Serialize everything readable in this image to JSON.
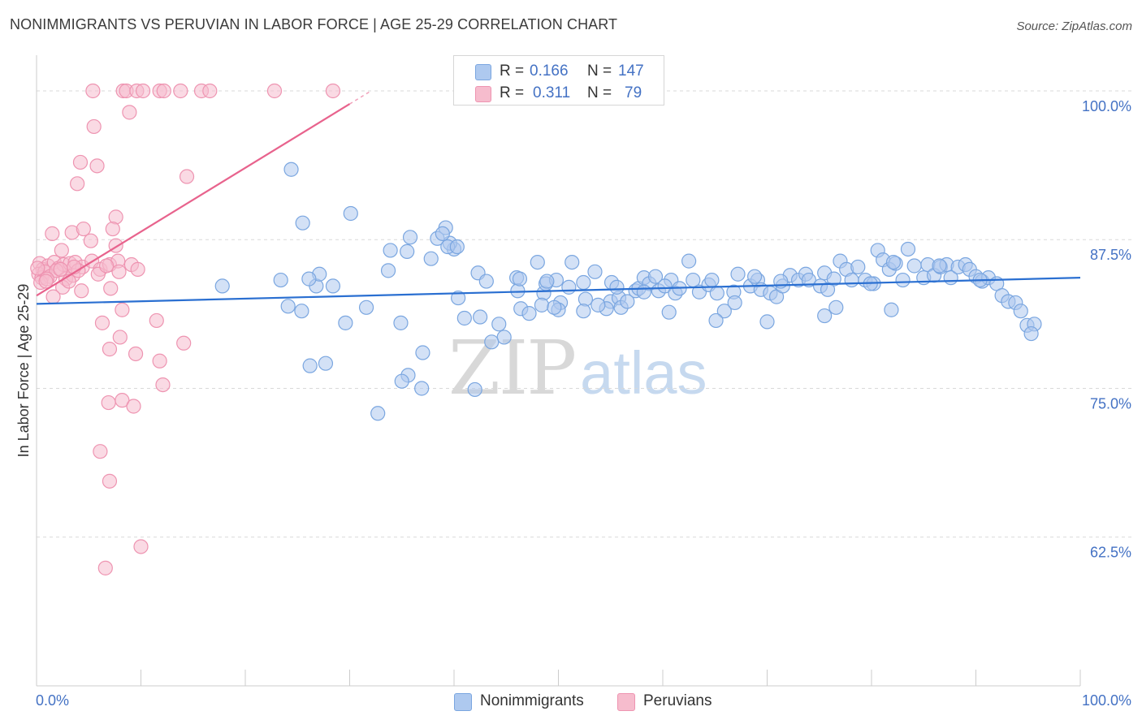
{
  "title": "NONIMMIGRANTS VS PERUVIAN IN LABOR FORCE | AGE 25-29 CORRELATION CHART",
  "source": "Source: ZipAtlas.com",
  "watermark": {
    "zip": "ZIP",
    "atlas": "atlas"
  },
  "colors": {
    "blue_fill": "#aec9ef",
    "blue_stroke": "#7aa6e0",
    "blue_line": "#2a6fd1",
    "pink_fill": "#f6bccd",
    "pink_stroke": "#ee94b1",
    "pink_line": "#e8638d",
    "tick_text": "#4472c4",
    "grid": "#d9d9d9"
  },
  "legend": {
    "rows": [
      {
        "series": "Nonimmigrants",
        "r_label": "R =",
        "r_value": "0.166",
        "n_label": "N =",
        "n_value": "147"
      },
      {
        "series": "Peruvians",
        "r_label": "R =",
        "r_value": "0.311",
        "n_label": "N =",
        "n_value": "79"
      }
    ]
  },
  "bottom_legend": [
    "Nonimmigrants",
    "Peruvians"
  ],
  "chart_data": {
    "type": "scatter",
    "title": "NONIMMIGRANTS VS PERUVIAN IN LABOR FORCE | AGE 25-29 CORRELATION CHART",
    "xlabel": "",
    "ylabel": "In Labor Force | Age 25-29",
    "xlim": [
      0,
      100
    ],
    "ylim": [
      50,
      103
    ],
    "x_tick_labels": [
      "0.0%",
      "100.0%"
    ],
    "y_ticks": [
      62.5,
      75.0,
      87.5,
      100.0
    ],
    "y_tick_labels": [
      "62.5%",
      "75.0%",
      "87.5%",
      "100.0%"
    ],
    "grid": true,
    "series": [
      {
        "name": "Nonimmigrants",
        "r": 0.166,
        "n": 147,
        "trend": {
          "x": [
            0,
            100
          ],
          "y": [
            82.1,
            84.3
          ]
        },
        "points": [
          [
            24.4,
            93.4
          ],
          [
            25.5,
            88.9
          ],
          [
            26.8,
            83.6
          ],
          [
            27.1,
            84.6
          ],
          [
            28.4,
            83.6
          ],
          [
            30.1,
            89.7
          ],
          [
            33.7,
            84.9
          ],
          [
            33.9,
            86.6
          ],
          [
            35.5,
            86.5
          ],
          [
            35.8,
            87.7
          ],
          [
            38.4,
            87.6
          ],
          [
            37.8,
            85.9
          ],
          [
            40.0,
            86.7
          ],
          [
            39.6,
            87.2
          ],
          [
            39.2,
            88.5
          ],
          [
            38.9,
            88.0
          ],
          [
            39.4,
            86.9
          ],
          [
            40.3,
            86.9
          ],
          [
            42.3,
            84.7
          ],
          [
            43.1,
            84.0
          ],
          [
            46.0,
            84.3
          ],
          [
            48.0,
            85.6
          ],
          [
            46.1,
            83.2
          ],
          [
            48.6,
            83.0
          ],
          [
            48.8,
            83.8
          ],
          [
            46.4,
            81.7
          ],
          [
            48.4,
            82.0
          ],
          [
            49.8,
            84.1
          ],
          [
            50.2,
            82.2
          ],
          [
            50.0,
            81.6
          ],
          [
            51.0,
            83.5
          ],
          [
            51.3,
            85.6
          ],
          [
            52.6,
            82.5
          ],
          [
            52.4,
            81.5
          ],
          [
            53.5,
            84.8
          ],
          [
            55.0,
            82.3
          ],
          [
            54.6,
            81.7
          ],
          [
            55.1,
            83.9
          ],
          [
            55.8,
            82.6
          ],
          [
            56.0,
            81.8
          ],
          [
            57.4,
            83.2
          ],
          [
            56.6,
            82.3
          ],
          [
            57.7,
            83.4
          ],
          [
            58.2,
            84.3
          ],
          [
            58.7,
            83.8
          ],
          [
            59.3,
            84.4
          ],
          [
            59.6,
            83.2
          ],
          [
            60.8,
            84.1
          ],
          [
            60.2,
            83.6
          ],
          [
            61.2,
            83.0
          ],
          [
            62.5,
            85.7
          ],
          [
            62.9,
            84.1
          ],
          [
            63.5,
            83.1
          ],
          [
            64.4,
            83.7
          ],
          [
            65.2,
            83.0
          ],
          [
            65.9,
            81.5
          ],
          [
            66.8,
            83.1
          ],
          [
            66.9,
            82.2
          ],
          [
            67.2,
            84.6
          ],
          [
            68.4,
            83.6
          ],
          [
            69.1,
            84.1
          ],
          [
            69.4,
            83.3
          ],
          [
            70.3,
            83.0
          ],
          [
            70.9,
            82.7
          ],
          [
            71.5,
            83.6
          ],
          [
            72.2,
            84.5
          ],
          [
            73.0,
            84.1
          ],
          [
            73.7,
            84.6
          ],
          [
            74.0,
            84.1
          ],
          [
            75.1,
            83.6
          ],
          [
            75.5,
            84.7
          ],
          [
            76.4,
            84.2
          ],
          [
            77.0,
            85.7
          ],
          [
            77.6,
            85.0
          ],
          [
            78.1,
            84.1
          ],
          [
            78.7,
            85.2
          ],
          [
            79.4,
            84.1
          ],
          [
            80.2,
            83.8
          ],
          [
            80.6,
            86.6
          ],
          [
            81.1,
            85.8
          ],
          [
            81.7,
            85.0
          ],
          [
            82.3,
            85.5
          ],
          [
            83.5,
            86.7
          ],
          [
            83.0,
            84.1
          ],
          [
            84.1,
            85.3
          ],
          [
            85.0,
            84.3
          ],
          [
            85.4,
            85.4
          ],
          [
            86.0,
            84.5
          ],
          [
            86.6,
            85.2
          ],
          [
            87.2,
            85.4
          ],
          [
            87.6,
            84.3
          ],
          [
            88.3,
            85.2
          ],
          [
            89.0,
            85.4
          ],
          [
            89.4,
            85.0
          ],
          [
            90.0,
            84.4
          ],
          [
            90.6,
            84.0
          ],
          [
            91.2,
            84.3
          ],
          [
            92.0,
            83.8
          ],
          [
            92.5,
            82.8
          ],
          [
            93.1,
            82.3
          ],
          [
            93.8,
            82.2
          ],
          [
            94.3,
            81.5
          ],
          [
            94.9,
            80.3
          ],
          [
            95.6,
            80.4
          ],
          [
            95.3,
            79.6
          ],
          [
            90.4,
            84.1
          ],
          [
            86.5,
            85.3
          ],
          [
            82.1,
            85.6
          ],
          [
            79.9,
            83.8
          ],
          [
            75.8,
            83.3
          ],
          [
            71.3,
            84.0
          ],
          [
            68.8,
            84.4
          ],
          [
            64.7,
            84.1
          ],
          [
            61.6,
            83.4
          ],
          [
            58.2,
            83.1
          ],
          [
            55.6,
            83.5
          ],
          [
            52.4,
            83.9
          ],
          [
            48.9,
            84.0
          ],
          [
            46.3,
            84.2
          ],
          [
            17.8,
            83.6
          ],
          [
            26.1,
            84.2
          ],
          [
            23.4,
            84.1
          ],
          [
            24.1,
            81.9
          ],
          [
            25.4,
            81.5
          ],
          [
            29.6,
            80.5
          ],
          [
            31.6,
            81.8
          ],
          [
            34.9,
            80.5
          ],
          [
            37.0,
            78.0
          ],
          [
            35.6,
            76.1
          ],
          [
            41.0,
            80.9
          ],
          [
            44.3,
            80.4
          ],
          [
            42.5,
            81.0
          ],
          [
            44.8,
            79.3
          ],
          [
            43.6,
            78.9
          ],
          [
            35.0,
            75.6
          ],
          [
            32.7,
            72.9
          ],
          [
            42.0,
            74.9
          ],
          [
            27.7,
            77.1
          ],
          [
            26.2,
            76.9
          ],
          [
            36.9,
            75.0
          ],
          [
            70.0,
            80.6
          ],
          [
            75.5,
            81.1
          ],
          [
            76.6,
            81.8
          ],
          [
            81.9,
            81.6
          ],
          [
            65.1,
            80.7
          ],
          [
            47.2,
            81.3
          ],
          [
            49.6,
            81.8
          ],
          [
            53.8,
            82.0
          ],
          [
            60.6,
            81.4
          ],
          [
            40.4,
            82.6
          ]
        ]
      },
      {
        "name": "Peruvians",
        "r": 0.311,
        "n": 79,
        "trend": {
          "x": [
            0,
            30
          ],
          "y": [
            82.8,
            98.9
          ]
        },
        "points": [
          [
            5.4,
            100
          ],
          [
            8.3,
            100
          ],
          [
            8.6,
            100
          ],
          [
            9.6,
            100
          ],
          [
            10.2,
            100
          ],
          [
            11.8,
            100
          ],
          [
            12.2,
            100
          ],
          [
            13.8,
            100
          ],
          [
            15.8,
            100
          ],
          [
            16.6,
            100
          ],
          [
            22.8,
            100
          ],
          [
            28.4,
            100
          ],
          [
            8.9,
            98.2
          ],
          [
            5.5,
            97.0
          ],
          [
            4.2,
            94.0
          ],
          [
            5.8,
            93.7
          ],
          [
            3.9,
            92.2
          ],
          [
            14.4,
            92.8
          ],
          [
            7.6,
            89.4
          ],
          [
            3.4,
            88.1
          ],
          [
            4.5,
            88.4
          ],
          [
            5.2,
            87.4
          ],
          [
            7.3,
            88.4
          ],
          [
            7.6,
            87.0
          ],
          [
            1.5,
            88.0
          ],
          [
            2.4,
            86.6
          ],
          [
            0.3,
            85.5
          ],
          [
            0.6,
            85.0
          ],
          [
            1.1,
            85.3
          ],
          [
            1.7,
            85.6
          ],
          [
            2.1,
            85.1
          ],
          [
            2.6,
            85.4
          ],
          [
            3.2,
            85.5
          ],
          [
            3.7,
            85.6
          ],
          [
            4.4,
            85.2
          ],
          [
            5.3,
            85.7
          ],
          [
            6.1,
            85.0
          ],
          [
            7.0,
            85.4
          ],
          [
            7.8,
            85.7
          ],
          [
            9.1,
            85.4
          ],
          [
            0.2,
            84.6
          ],
          [
            0.5,
            84.3
          ],
          [
            0.8,
            84.8
          ],
          [
            1.3,
            84.4
          ],
          [
            1.9,
            84.9
          ],
          [
            2.8,
            84.2
          ],
          [
            3.5,
            84.5
          ],
          [
            4.0,
            84.9
          ],
          [
            5.9,
            84.6
          ],
          [
            0.4,
            83.9
          ],
          [
            2.5,
            83.5
          ],
          [
            3.1,
            84.0
          ],
          [
            4.3,
            83.2
          ],
          [
            7.1,
            83.4
          ],
          [
            1.6,
            82.7
          ],
          [
            8.2,
            81.6
          ],
          [
            6.3,
            80.5
          ],
          [
            11.5,
            80.7
          ],
          [
            8.0,
            79.3
          ],
          [
            7.0,
            78.3
          ],
          [
            9.5,
            77.9
          ],
          [
            11.8,
            77.3
          ],
          [
            14.1,
            78.8
          ],
          [
            12.1,
            75.3
          ],
          [
            6.9,
            73.8
          ],
          [
            8.2,
            74.0
          ],
          [
            9.3,
            73.5
          ],
          [
            6.1,
            69.7
          ],
          [
            7.0,
            67.2
          ],
          [
            10.0,
            61.7
          ],
          [
            6.6,
            59.9
          ],
          [
            0.1,
            85.1
          ],
          [
            1.0,
            84.2
          ],
          [
            2.3,
            85.0
          ],
          [
            3.6,
            85.2
          ],
          [
            6.7,
            85.3
          ],
          [
            7.9,
            84.8
          ],
          [
            9.7,
            85.0
          ],
          [
            0.9,
            84.0
          ]
        ]
      }
    ]
  }
}
